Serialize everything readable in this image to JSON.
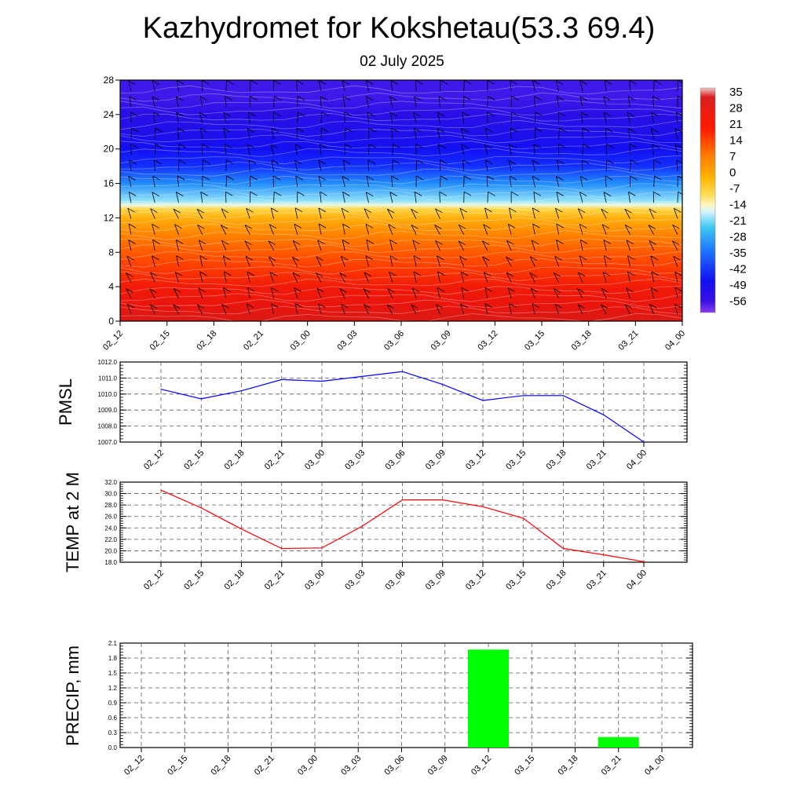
{
  "header": {
    "title": "Kazhydromet for Kokshetau(53.3 69.4)",
    "subtitle": "02 July 2025"
  },
  "time_labels": [
    "02_12",
    "02_15",
    "02_18",
    "02_21",
    "03_00",
    "03_03",
    "03_06",
    "03_09",
    "03_12",
    "03_15",
    "03_18",
    "03_21",
    "04_00"
  ],
  "colorbar": {
    "labels": [
      "35",
      "28",
      "21",
      "14",
      "7",
      "0",
      "-7",
      "-14",
      "-21",
      "-28",
      "-35",
      "-42",
      "-49",
      "-56"
    ]
  },
  "colors": {
    "pmsl_line": "#0000ff",
    "temp_line": "#ff0000",
    "precip_bar": "#00ff00",
    "grid": "#555555"
  },
  "chart_data": [
    {
      "type": "heatmap",
      "title": "Kazhydromet for Kokshetau(53.3 69.4)",
      "subtitle": "02 July 2025",
      "x": [
        "02_12",
        "02_15",
        "02_18",
        "02_21",
        "03_00",
        "03_03",
        "03_06",
        "03_09",
        "03_12",
        "03_15",
        "03_18",
        "03_21",
        "04_00"
      ],
      "ylim": [
        0,
        28
      ],
      "yticks": [
        0,
        4,
        8,
        12,
        16,
        20,
        24,
        28
      ],
      "colorbar_range": [
        -60,
        38
      ],
      "colorbar_labels": [
        "35",
        "28",
        "21",
        "14",
        "7",
        "0",
        "-7",
        "-14",
        "-21",
        "-28",
        "-35",
        "-42",
        "-49",
        "-56"
      ],
      "profile_height": [
        0,
        2,
        4,
        6,
        8,
        10,
        12,
        13,
        13.5,
        14,
        16,
        18,
        20,
        22,
        24,
        26,
        28
      ],
      "profile_value": [
        25,
        22,
        20,
        16,
        12,
        8,
        2,
        -4,
        -12,
        -18,
        -32,
        -44,
        -50,
        -54,
        -56,
        -57,
        -57
      ],
      "wind_barbs": true
    },
    {
      "type": "line",
      "ylabel": "PMSL",
      "x": [
        "02_12",
        "02_15",
        "02_18",
        "02_21",
        "03_00",
        "03_03",
        "03_06",
        "03_09",
        "03_12",
        "03_15",
        "03_18",
        "03_21",
        "04_00"
      ],
      "values": [
        1010.3,
        1009.7,
        1010.2,
        1010.9,
        1010.8,
        1011.1,
        1011.4,
        1010.6,
        1009.6,
        1009.9,
        1009.9,
        1008.7,
        1007.0
      ],
      "ylim": [
        1007.0,
        1012.0
      ],
      "yticks": [
        "1007.0",
        "1008.0",
        "1009.0",
        "1010.0",
        "1011.0",
        "1012.0"
      ],
      "grid": true
    },
    {
      "type": "line",
      "ylabel": "TEMP at 2 M",
      "x": [
        "02_12",
        "02_15",
        "02_18",
        "02_21",
        "03_00",
        "03_03",
        "03_06",
        "03_09",
        "03_12",
        "03_15",
        "03_18",
        "03_21",
        "04_00"
      ],
      "values": [
        30.6,
        27.5,
        23.8,
        20.4,
        20.5,
        24.3,
        28.9,
        28.9,
        27.7,
        25.7,
        20.4,
        19.3,
        18.1
      ],
      "ylim": [
        18.0,
        32.0
      ],
      "yticks": [
        "18.0",
        "20.0",
        "22.0",
        "24.0",
        "26.0",
        "28.0",
        "30.0",
        "32.0"
      ],
      "grid": true
    },
    {
      "type": "bar",
      "ylabel": "PRECIP, mm",
      "categories": [
        "02_12",
        "02_15",
        "02_18",
        "02_21",
        "03_00",
        "03_03",
        "03_06",
        "03_09",
        "03_12",
        "03_15",
        "03_18",
        "03_21",
        "04_00"
      ],
      "values": [
        0,
        0,
        0,
        0,
        0,
        0,
        0,
        0,
        1.97,
        0,
        0,
        0.21,
        0
      ],
      "ylim": [
        0,
        2.1
      ],
      "yticks": [
        "0.0",
        "0.3",
        "0.6",
        "0.9",
        "1.2",
        "1.5",
        "1.8",
        "2.1"
      ],
      "grid": true
    }
  ]
}
